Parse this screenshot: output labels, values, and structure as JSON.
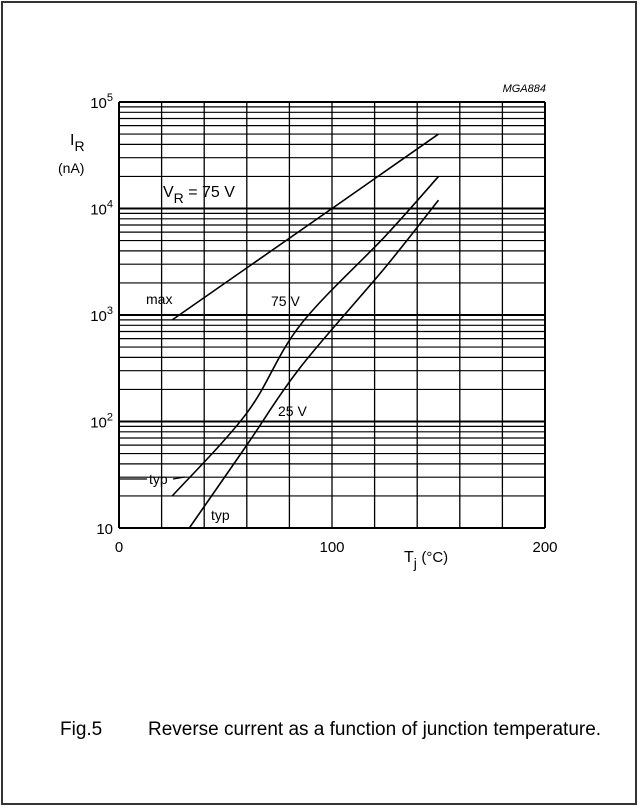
{
  "chart_data": {
    "type": "line",
    "code": "MGA884",
    "x": {
      "label_main": "T",
      "label_sub": "j",
      "label_unit": "(°C)",
      "lim": [
        0,
        200
      ],
      "ticks": [
        0,
        100,
        200
      ],
      "tick_labels": [
        "0",
        "100",
        "200"
      ]
    },
    "y": {
      "label_main": "I",
      "label_sub": "R",
      "label_unit": "(nA)",
      "scale": "log",
      "lim": [
        10,
        100000
      ],
      "tick_labels": [
        {
          "value": 10,
          "base": "10",
          "exp": ""
        },
        {
          "value": 100,
          "base": "10",
          "exp": "2"
        },
        {
          "value": 1000,
          "base": "10",
          "exp": "3"
        },
        {
          "value": 10000,
          "base": "10",
          "exp": "4"
        },
        {
          "value": 100000,
          "base": "10",
          "exp": "5"
        }
      ]
    },
    "grid": true,
    "series": [
      {
        "name": "max",
        "points": [
          [
            25,
            900
          ],
          [
            100,
            10000
          ],
          [
            150,
            50000
          ]
        ]
      },
      {
        "name": "75 V typ",
        "points": [
          [
            25,
            20
          ],
          [
            60,
            120
          ],
          [
            85,
            800
          ],
          [
            125,
            5500
          ],
          [
            150,
            20000
          ]
        ]
      },
      {
        "name": "25 V typ",
        "points": [
          [
            33,
            10
          ],
          [
            60,
            60
          ],
          [
            85,
            320
          ],
          [
            125,
            2800
          ],
          [
            150,
            12000
          ]
        ]
      }
    ],
    "annotations": {
      "vr_main": "V",
      "vr_sub": "R",
      "vr_value": " = 75 V",
      "max": "max",
      "v75": "75 V",
      "v25": "25 V",
      "typ1": "typ",
      "typ2": "typ"
    }
  },
  "caption": {
    "fig": "Fig.5",
    "text": "Reverse current as a function of junction temperature."
  }
}
